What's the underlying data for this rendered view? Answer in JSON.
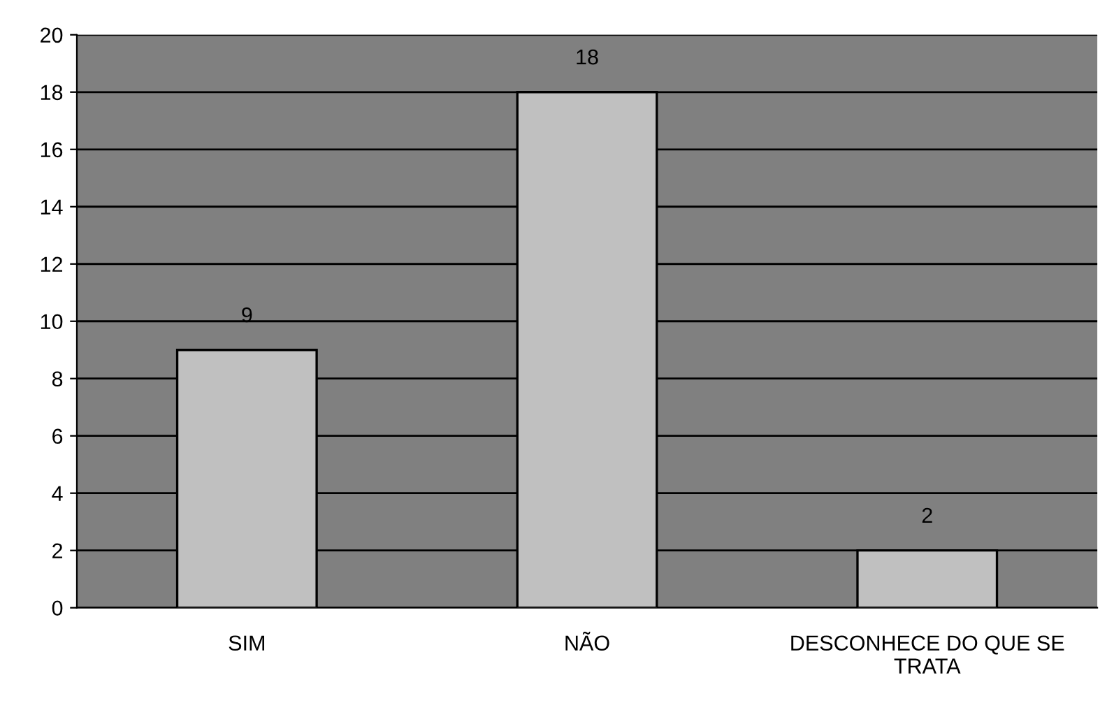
{
  "chart_data": {
    "type": "bar",
    "categories": [
      "SIM",
      "NÃO",
      "DESCONHECE DO QUE SE\nTRATA"
    ],
    "values": [
      9,
      18,
      2
    ],
    "color": "#c0c0c0",
    "ylim": [
      0,
      20
    ],
    "yticks": [
      0,
      2,
      4,
      6,
      8,
      10,
      12,
      14,
      16,
      18,
      20
    ],
    "grid": "y",
    "data_labels": true,
    "legend": false
  }
}
